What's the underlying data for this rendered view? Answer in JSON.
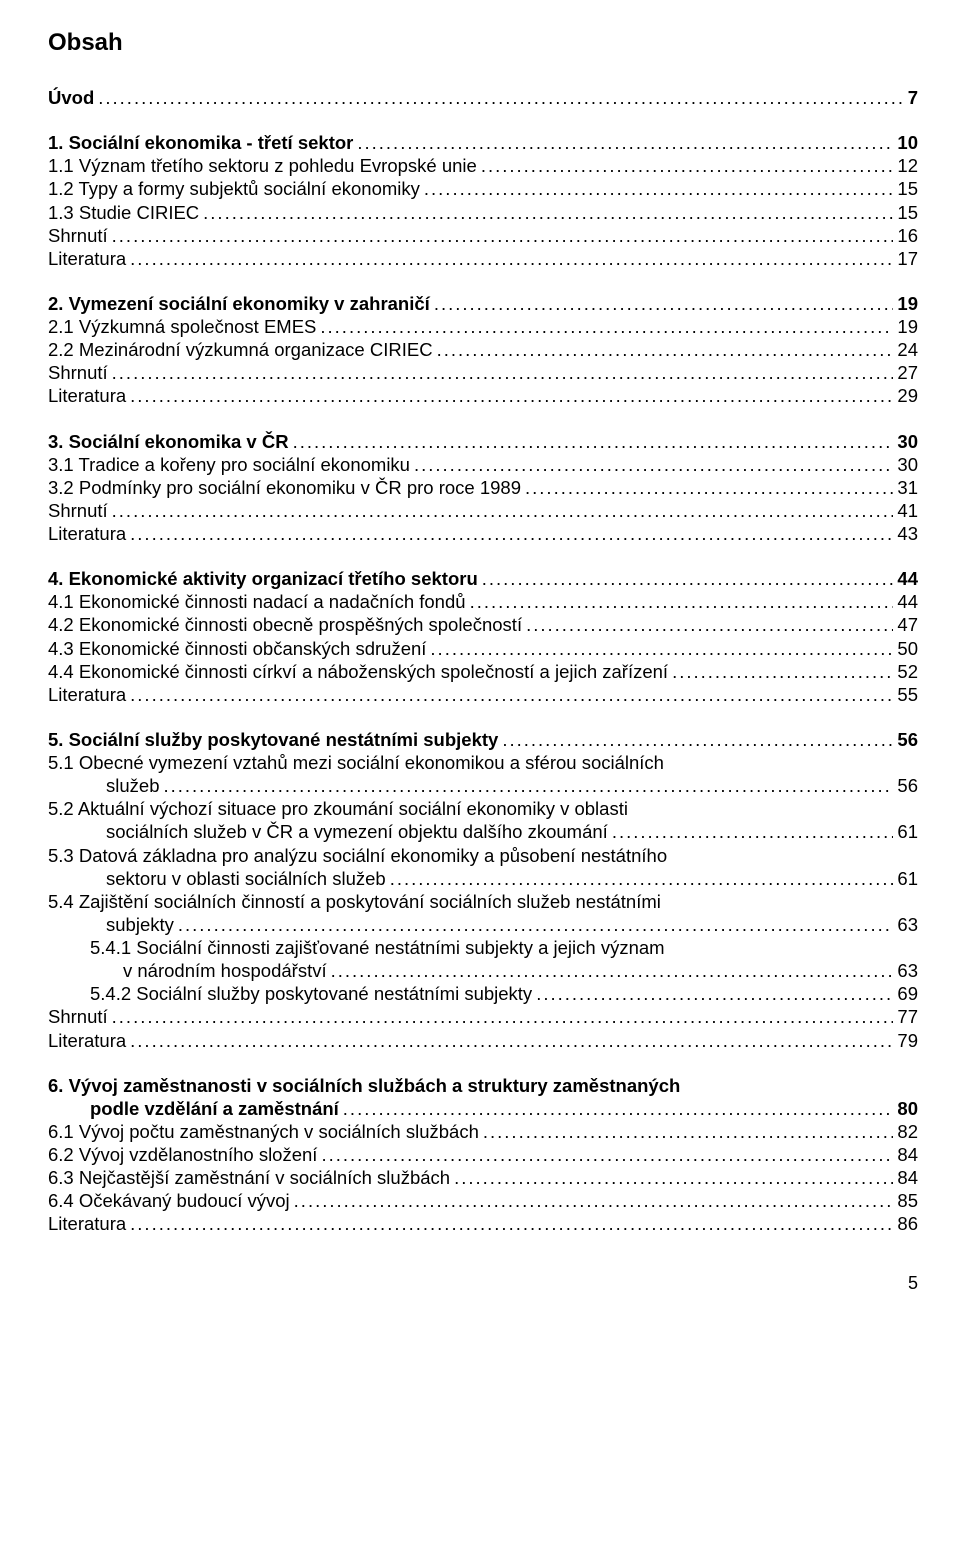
{
  "title": "Obsah",
  "page_number": "5",
  "entries": [
    {
      "id": "uvod",
      "label": "Úvod",
      "page": "7",
      "bold": true,
      "group_start": false
    },
    {
      "id": "s1",
      "label": "1. Sociální ekonomika - třetí sektor",
      "page": "10",
      "bold": true,
      "group_start": true
    },
    {
      "id": "s1-1",
      "label": "1.1 Význam třetího sektoru z pohledu Evropské unie",
      "page": "12",
      "bold": false
    },
    {
      "id": "s1-2",
      "label": "1.2 Typy a formy subjektů sociální ekonomiky",
      "page": "15",
      "bold": false
    },
    {
      "id": "s1-3",
      "label": "1.3 Studie CIRIEC",
      "page": "15",
      "bold": false
    },
    {
      "id": "s1-sh",
      "label": "Shrnutí",
      "page": "16",
      "bold": false
    },
    {
      "id": "s1-lit",
      "label": "Literatura",
      "page": "17",
      "bold": false
    },
    {
      "id": "s2",
      "label": "2. Vymezení sociální ekonomiky v zahraničí",
      "page": "19",
      "bold": true,
      "group_start": true
    },
    {
      "id": "s2-1",
      "label": "2.1 Výzkumná společnost EMES",
      "page": "19",
      "bold": false
    },
    {
      "id": "s2-2",
      "label": "2.2 Mezinárodní výzkumná organizace CIRIEC",
      "page": "24",
      "bold": false
    },
    {
      "id": "s2-sh",
      "label": "Shrnutí",
      "page": "27",
      "bold": false
    },
    {
      "id": "s2-lit",
      "label": "Literatura",
      "page": "29",
      "bold": false
    },
    {
      "id": "s3",
      "label": "3. Sociální ekonomika v ČR",
      "page": "30",
      "bold": true,
      "group_start": true
    },
    {
      "id": "s3-1",
      "label": "3.1 Tradice a kořeny pro sociální ekonomiku",
      "page": "30",
      "bold": false
    },
    {
      "id": "s3-2",
      "label": "3.2 Podmínky pro sociální ekonomiku v ČR pro roce 1989",
      "page": "31",
      "bold": false
    },
    {
      "id": "s3-sh",
      "label": "Shrnutí",
      "page": "41",
      "bold": false
    },
    {
      "id": "s3-lit",
      "label": "Literatura",
      "page": "43",
      "bold": false
    },
    {
      "id": "s4",
      "label": "4. Ekonomické aktivity organizací třetího sektoru",
      "page": "44",
      "bold": true,
      "group_start": true
    },
    {
      "id": "s4-1",
      "label": "4.1 Ekonomické činnosti nadací a nadačních fondů",
      "page": "44",
      "bold": false
    },
    {
      "id": "s4-2",
      "label": "4.2 Ekonomické činnosti obecně prospěšných společností",
      "page": "47",
      "bold": false
    },
    {
      "id": "s4-3",
      "label": "4.3 Ekonomické činnosti občanských sdružení",
      "page": "50",
      "bold": false
    },
    {
      "id": "s4-4",
      "label": "4.4 Ekonomické činnosti církví a náboženských společností a jejich zařízení",
      "page": "52",
      "bold": false
    },
    {
      "id": "s4-lit",
      "label": "Literatura",
      "page": "55",
      "bold": false
    },
    {
      "id": "s5",
      "label": "5. Sociální služby poskytované nestátními subjekty",
      "page": "56",
      "bold": true,
      "group_start": true
    },
    {
      "id": "s5-1a",
      "label": "5.1 Obecné vymezení vztahů mezi sociální ekonomikou a sférou sociálních",
      "bold": false,
      "no_dots": true
    },
    {
      "id": "s5-1b",
      "label": "služeb",
      "page": "56",
      "bold": false,
      "indent": "wrap-indent"
    },
    {
      "id": "s5-2a",
      "label": "5.2 Aktuální výchozí situace pro zkoumání sociální ekonomiky v oblasti",
      "bold": false,
      "no_dots": true
    },
    {
      "id": "s5-2b",
      "label": "sociálních služeb v ČR a vymezení objektu dalšího zkoumání",
      "page": "61",
      "bold": false,
      "indent": "wrap-indent"
    },
    {
      "id": "s5-3a",
      "label": "5.3 Datová základna pro analýzu sociální ekonomiky a působení nestátního",
      "bold": false,
      "no_dots": true
    },
    {
      "id": "s5-3b",
      "label": "sektoru v oblasti sociálních služeb",
      "page": "61",
      "bold": false,
      "indent": "wrap-indent"
    },
    {
      "id": "s5-4a",
      "label": "5.4 Zajištění sociálních činností a poskytování sociálních služeb nestátními",
      "bold": false,
      "no_dots": true
    },
    {
      "id": "s5-4b",
      "label": "subjekty",
      "page": "63",
      "bold": false,
      "indent": "wrap-indent"
    },
    {
      "id": "s5-4-1a",
      "label": "5.4.1 Sociální činnosti zajišťované nestátními subjekty a jejich význam",
      "bold": false,
      "indent": "sub-indent",
      "no_dots": true
    },
    {
      "id": "s5-4-1b",
      "label": "v národním hospodářství",
      "page": "63",
      "bold": false,
      "indent": "wrap-indent2"
    },
    {
      "id": "s5-4-2",
      "label": "5.4.2 Sociální služby poskytované nestátními subjekty",
      "page": "69",
      "bold": false,
      "indent": "sub-indent"
    },
    {
      "id": "s5-sh",
      "label": "Shrnutí",
      "page": "77",
      "bold": false
    },
    {
      "id": "s5-lit",
      "label": "Literatura",
      "page": "79",
      "bold": false
    },
    {
      "id": "s6a",
      "label": "6. Vývoj zaměstnanosti v sociálních službách a struktury zaměstnaných",
      "bold": true,
      "group_start": true,
      "no_dots": true
    },
    {
      "id": "s6b",
      "label": "podle vzdělání a zaměstnání",
      "page": "80",
      "bold": true,
      "indent": "sub-indent"
    },
    {
      "id": "s6-1",
      "label": "6.1 Vývoj počtu zaměstnaných v sociálních službách",
      "page": "82",
      "bold": false
    },
    {
      "id": "s6-2",
      "label": "6.2 Vývoj vzdělanostního složení",
      "page": "84",
      "bold": false
    },
    {
      "id": "s6-3",
      "label": "6.3 Nejčastější zaměstnání v sociálních službách",
      "page": "84",
      "bold": false
    },
    {
      "id": "s6-4",
      "label": "6.4 Očekávaný budoucí vývoj",
      "page": "85",
      "bold": false
    },
    {
      "id": "s6-lit",
      "label": "Literatura",
      "page": "86",
      "bold": false
    }
  ]
}
